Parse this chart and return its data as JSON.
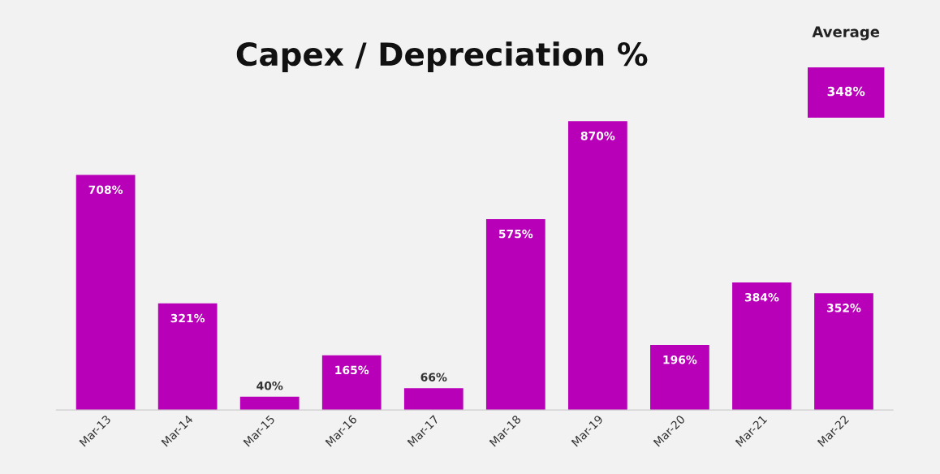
{
  "chart_data": {
    "type": "bar",
    "title": "Capex / Depreciation %",
    "categories": [
      "Mar-13",
      "Mar-14",
      "Mar-15",
      "Mar-16",
      "Mar-17",
      "Mar-18",
      "Mar-19",
      "Mar-20",
      "Mar-21",
      "Mar-22"
    ],
    "values": [
      708,
      321,
      40,
      165,
      66,
      575,
      870,
      196,
      384,
      352
    ],
    "value_labels": [
      "708%",
      "321%",
      "40%",
      "165%",
      "66%",
      "575%",
      "870%",
      "196%",
      "384%",
      "352%"
    ],
    "color": "#b800b8",
    "tick_labels": "x",
    "grid": false,
    "legend": false,
    "annotations": [
      "Average",
      "348%"
    ]
  }
}
